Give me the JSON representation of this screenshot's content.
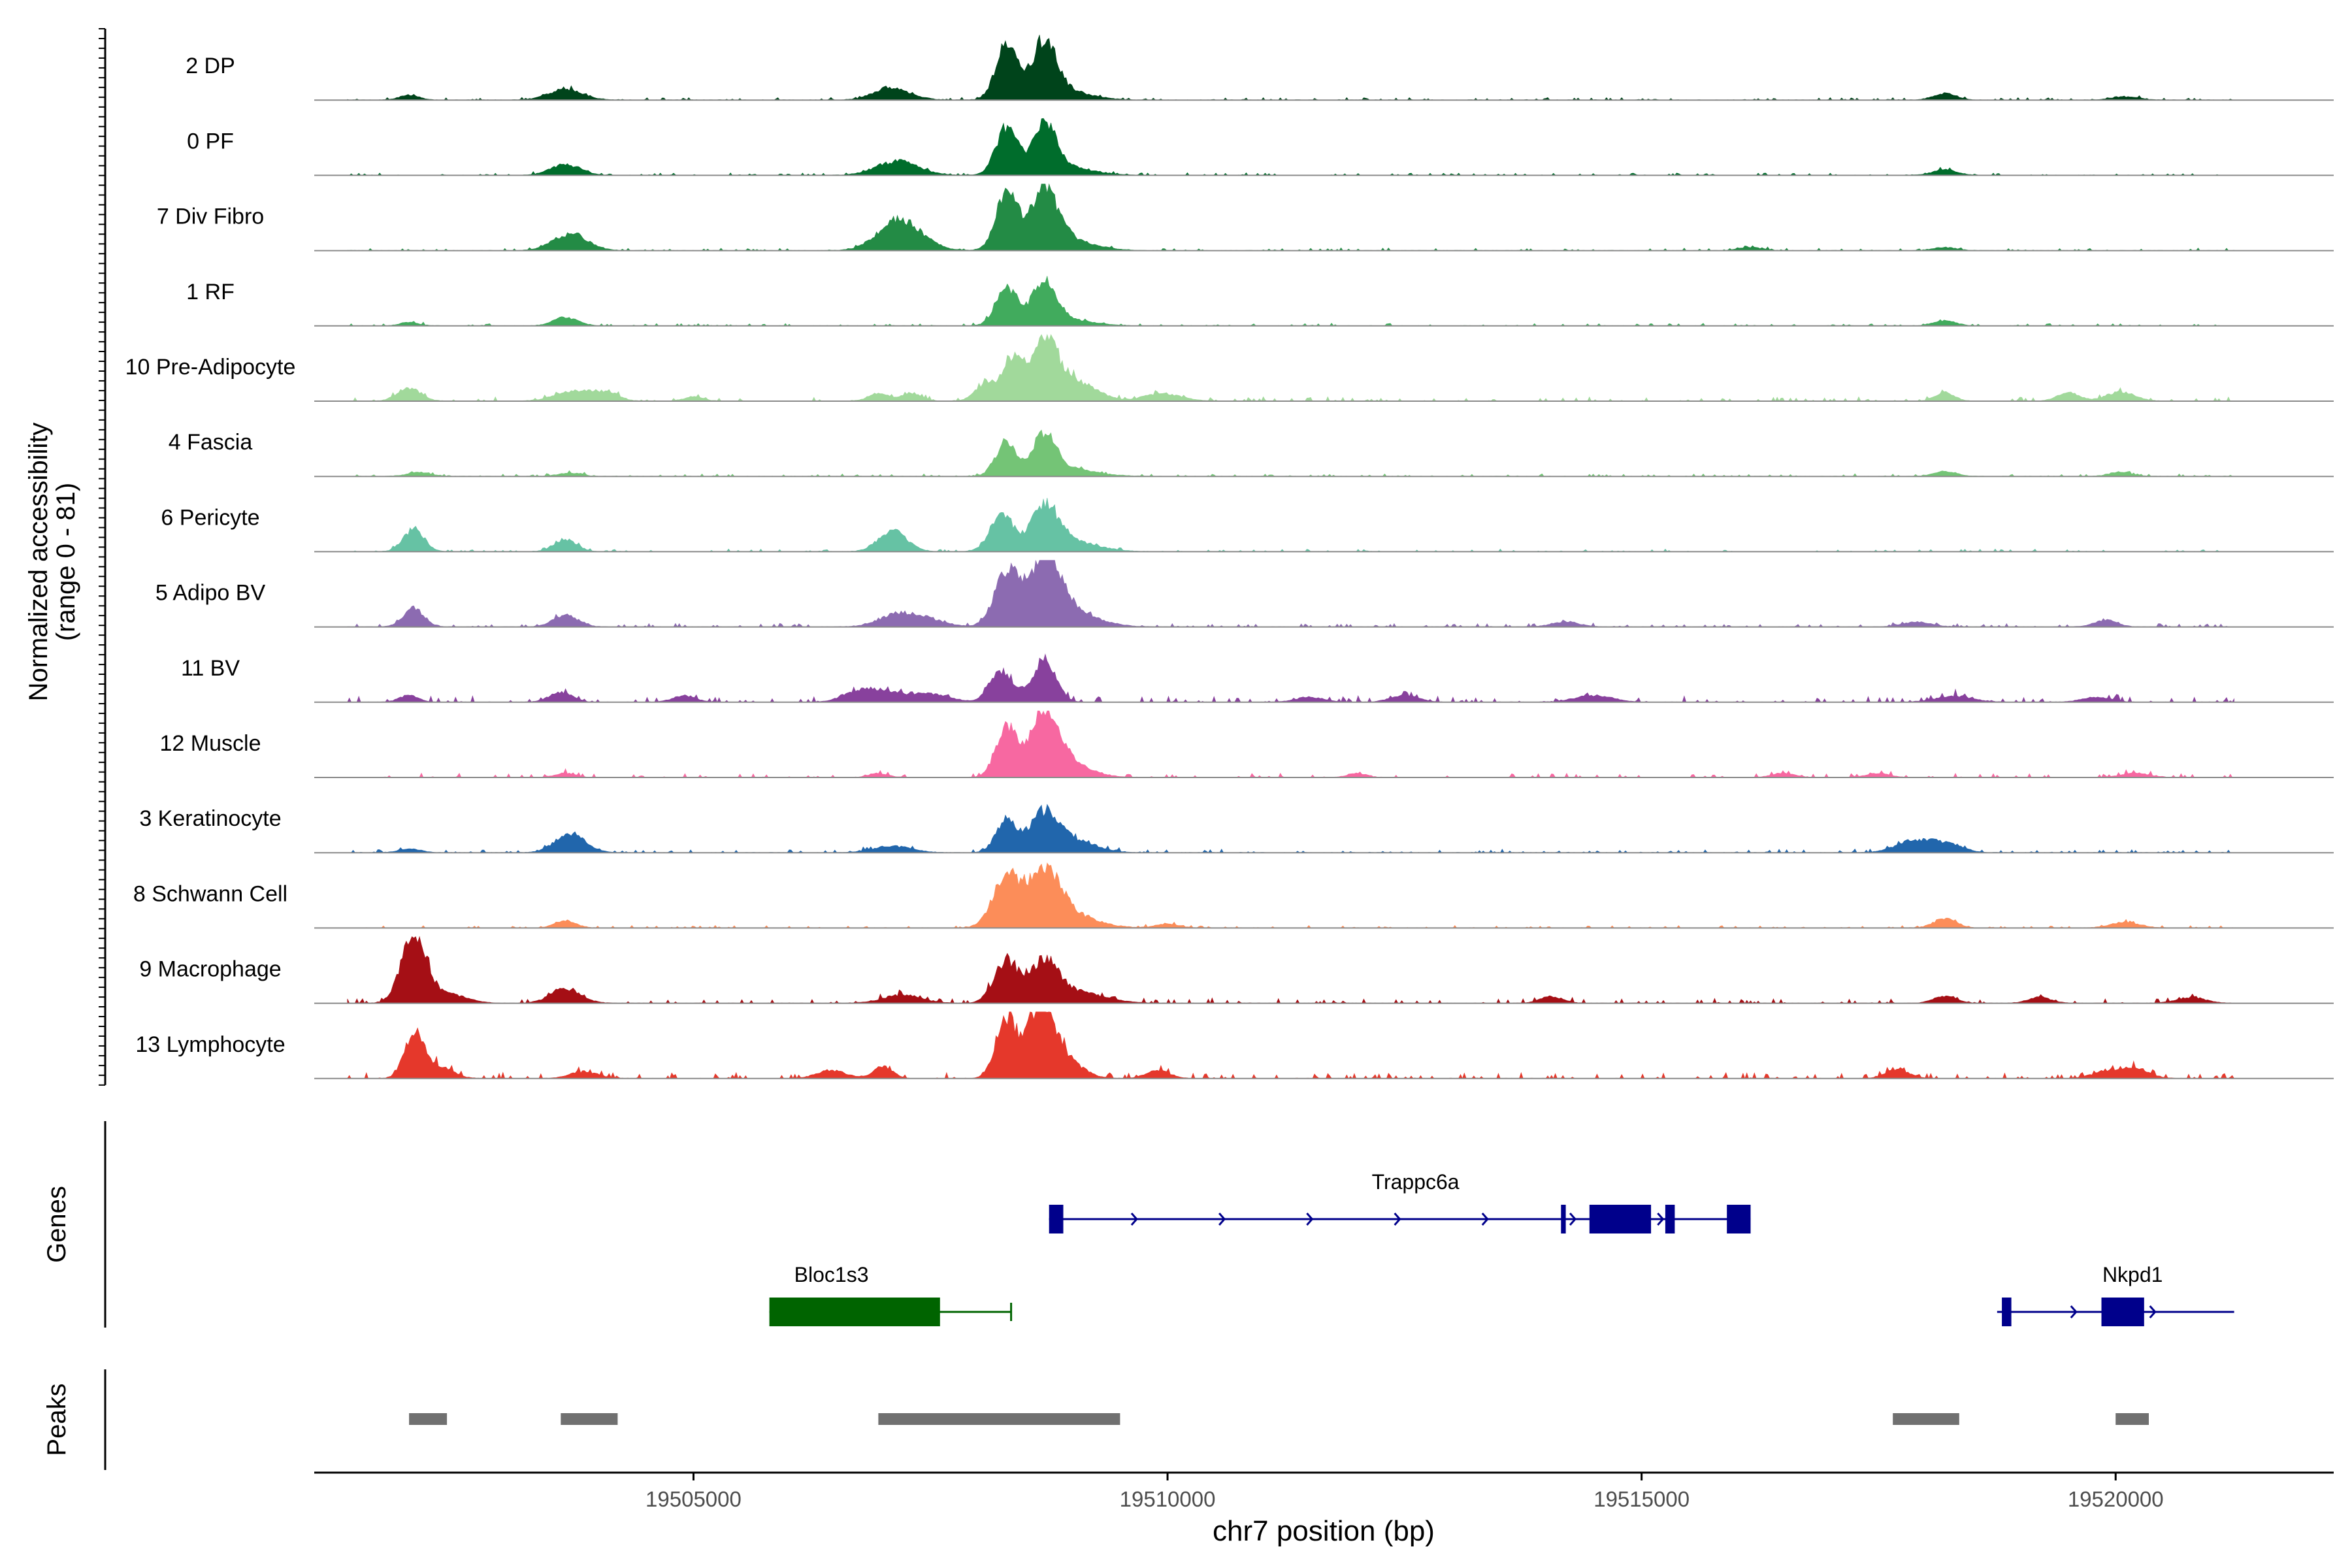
{
  "chart_data": {
    "type": "area",
    "chromosome": "chr7",
    "xlabel": "chr7 position (bp)",
    "ylabel": "Normalized accessibility",
    "ylabel_range": "(range 0 - 81)",
    "ylim": [
      0,
      81
    ],
    "xlim": [
      19501000,
      19522300
    ],
    "x_ticks": [
      {
        "value": 19505000,
        "label": "19505000"
      },
      {
        "value": 19510000,
        "label": "19510000"
      },
      {
        "value": 19515000,
        "label": "19515000"
      },
      {
        "value": 19520000,
        "label": "19520000"
      }
    ],
    "tracks": [
      {
        "name": "2 DP",
        "color": "#00441b",
        "peaks": [
          [
            19502000,
            6,
            100
          ],
          [
            19503650,
            13,
            180
          ],
          [
            19507050,
            9,
            160
          ],
          [
            19507150,
            7,
            200
          ],
          [
            19508300,
            63,
            110
          ],
          [
            19508700,
            61,
            120
          ],
          [
            19508800,
            15,
            300
          ],
          [
            19518200,
            8,
            120
          ],
          [
            19520100,
            4,
            140
          ]
        ],
        "noise": 3,
        "seed": 11
      },
      {
        "name": "0 PF",
        "color": "#006d2c",
        "peaks": [
          [
            19503650,
            13,
            160
          ],
          [
            19507150,
            17,
            220
          ],
          [
            19508300,
            56,
            110
          ],
          [
            19508700,
            55,
            120
          ],
          [
            19508850,
            11,
            300
          ],
          [
            19518200,
            7,
            120
          ]
        ],
        "noise": 3,
        "seed": 12
      },
      {
        "name": "7 Div Fibro",
        "color": "#238b45",
        "peaks": [
          [
            19503700,
            20,
            180
          ],
          [
            19507100,
            25,
            200
          ],
          [
            19507300,
            17,
            200
          ],
          [
            19508300,
            68,
            110
          ],
          [
            19508700,
            62,
            140
          ],
          [
            19508850,
            16,
            300
          ],
          [
            19516150,
            4,
            120
          ],
          [
            19518200,
            4,
            120
          ]
        ],
        "noise": 3,
        "seed": 13
      },
      {
        "name": "1 RF",
        "color": "#41ab5d",
        "peaks": [
          [
            19502000,
            4,
            100
          ],
          [
            19503650,
            10,
            130
          ],
          [
            19508300,
            47,
            110
          ],
          [
            19508700,
            49,
            120
          ],
          [
            19508850,
            9,
            300
          ],
          [
            19518200,
            6,
            120
          ]
        ],
        "noise": 3,
        "seed": 14
      },
      {
        "name": "10 Pre-Adipocyte",
        "color": "#a1d99b",
        "peaks": [
          [
            19502000,
            16,
            120
          ],
          [
            19503750,
            13,
            200
          ],
          [
            19504100,
            9,
            120
          ],
          [
            19505000,
            5,
            100
          ],
          [
            19506950,
            10,
            100
          ],
          [
            19507300,
            10,
            100
          ],
          [
            19508100,
            22,
            120
          ],
          [
            19508400,
            57,
            110
          ],
          [
            19508700,
            67,
            110
          ],
          [
            19508900,
            30,
            150
          ],
          [
            19509200,
            13,
            150
          ],
          [
            19509950,
            9,
            200
          ],
          [
            19518200,
            10,
            100
          ],
          [
            19519500,
            10,
            120
          ],
          [
            19520050,
            11,
            150
          ]
        ],
        "noise": 5,
        "seed": 15
      },
      {
        "name": "4 Fascia",
        "color": "#74c476",
        "peaks": [
          [
            19502100,
            5,
            120
          ],
          [
            19503700,
            4,
            120
          ],
          [
            19508300,
            40,
            110
          ],
          [
            19508700,
            45,
            120
          ],
          [
            19508900,
            10,
            300
          ],
          [
            19518200,
            6,
            120
          ],
          [
            19520050,
            5,
            120
          ]
        ],
        "noise": 3,
        "seed": 16
      },
      {
        "name": "6 Pericyte",
        "color": "#66c2a4",
        "peaks": [
          [
            19502050,
            27,
            110
          ],
          [
            19503650,
            15,
            120
          ],
          [
            19507100,
            25,
            150
          ],
          [
            19508250,
            45,
            120
          ],
          [
            19508700,
            47,
            130
          ],
          [
            19508900,
            15,
            300
          ]
        ],
        "noise": 3,
        "seed": 17
      },
      {
        "name": "5 Adipo BV",
        "color": "#8c6bb1",
        "peaks": [
          [
            19502050,
            22,
            110
          ],
          [
            19503650,
            14,
            130
          ],
          [
            19507150,
            14,
            200
          ],
          [
            19507450,
            8,
            200
          ],
          [
            19508300,
            62,
            130
          ],
          [
            19508700,
            70,
            160
          ],
          [
            19508900,
            22,
            300
          ],
          [
            19514200,
            6,
            150
          ],
          [
            19517900,
            6,
            150
          ],
          [
            19519900,
            8,
            120
          ]
        ],
        "noise": 4,
        "seed": 18
      },
      {
        "name": "11 BV",
        "color": "#88419d",
        "peaks": [
          [
            19502000,
            8,
            100
          ],
          [
            19503600,
            12,
            120
          ],
          [
            19504900,
            8,
            120
          ],
          [
            19506700,
            10,
            150
          ],
          [
            19507000,
            13,
            200
          ],
          [
            19507500,
            10,
            200
          ],
          [
            19508250,
            38,
            120
          ],
          [
            19508700,
            53,
            120
          ],
          [
            19511500,
            6,
            150
          ],
          [
            19512500,
            8,
            150
          ],
          [
            19514500,
            8,
            200
          ],
          [
            19518300,
            7,
            200
          ],
          [
            19519800,
            6,
            150
          ]
        ],
        "noise": 7,
        "seed": 19
      },
      {
        "name": "12 Muscle",
        "color": "#f768a1",
        "peaks": [
          [
            19503650,
            5,
            100
          ],
          [
            19506950,
            5,
            100
          ],
          [
            19508300,
            60,
            110
          ],
          [
            19508700,
            72,
            140
          ],
          [
            19508900,
            20,
            250
          ],
          [
            19512000,
            5,
            100
          ],
          [
            19516500,
            5,
            120
          ],
          [
            19517500,
            5,
            120
          ],
          [
            19520200,
            5,
            150
          ]
        ],
        "noise": 5,
        "seed": 20
      },
      {
        "name": "3 Keratinocyte",
        "color": "#2166ac",
        "peaks": [
          [
            19502000,
            5,
            110
          ],
          [
            19503700,
            22,
            160
          ],
          [
            19507100,
            8,
            200
          ],
          [
            19508300,
            39,
            110
          ],
          [
            19508700,
            42,
            150
          ],
          [
            19508950,
            16,
            250
          ],
          [
            19517900,
            15,
            200
          ],
          [
            19518250,
            9,
            150
          ]
        ],
        "noise": 4,
        "seed": 21
      },
      {
        "name": "8 Schwann Cell",
        "color": "#fc8d59",
        "peaks": [
          [
            19503650,
            9,
            110
          ],
          [
            19508300,
            62,
            140
          ],
          [
            19508700,
            60,
            160
          ],
          [
            19508900,
            18,
            300
          ],
          [
            19510000,
            5,
            120
          ],
          [
            19518200,
            11,
            120
          ],
          [
            19520100,
            7,
            150
          ]
        ],
        "noise": 3,
        "seed": 22
      },
      {
        "name": "9 Macrophage",
        "color": "#a50f15",
        "peaks": [
          [
            19502050,
            81,
            130
          ],
          [
            19502400,
            11,
            200
          ],
          [
            19503650,
            17,
            160
          ],
          [
            19507200,
            10,
            200
          ],
          [
            19508300,
            49,
            130
          ],
          [
            19508700,
            44,
            150
          ],
          [
            19509000,
            14,
            300
          ],
          [
            19514050,
            8,
            120
          ],
          [
            19518200,
            8,
            120
          ],
          [
            19519200,
            7,
            120
          ],
          [
            19520800,
            7,
            150
          ]
        ],
        "noise": 6,
        "seed": 23
      },
      {
        "name": "13 Lymphocyte",
        "color": "#e5382b",
        "peaks": [
          [
            19502050,
            53,
            100
          ],
          [
            19502300,
            15,
            150
          ],
          [
            19503850,
            8,
            150
          ],
          [
            19506450,
            10,
            150
          ],
          [
            19507000,
            14,
            100
          ],
          [
            19508300,
            70,
            110
          ],
          [
            19508650,
            76,
            130
          ],
          [
            19508850,
            30,
            200
          ],
          [
            19509900,
            10,
            120
          ],
          [
            19517700,
            11,
            120
          ],
          [
            19519900,
            8,
            150
          ],
          [
            19520200,
            12,
            150
          ]
        ],
        "noise": 7,
        "seed": 24
      }
    ],
    "genes_panel": {
      "label": "Genes",
      "genes": [
        {
          "name": "Trappc6a",
          "strand": "+",
          "row": 0,
          "color": "#00008b",
          "start": 19508750,
          "end": 19516150,
          "exons": [
            [
              19508750,
              19508900
            ],
            [
              19514150,
              19514200
            ],
            [
              19514450,
              19515100
            ],
            [
              19515250,
              19515350
            ],
            [
              19515900,
              19516150
            ]
          ]
        },
        {
          "name": "Bloc1s3",
          "strand": "-",
          "row": 1,
          "color": "#006400",
          "start": 19505800,
          "end": 19508350,
          "exons": [
            [
              19505800,
              19507600
            ]
          ]
        },
        {
          "name": "Nkpd1",
          "strand": "+",
          "row": 1,
          "color": "#00008b",
          "start": 19518750,
          "end": 19521250,
          "exons": [
            [
              19518800,
              19518900
            ],
            [
              19519850,
              19520300
            ]
          ]
        }
      ]
    },
    "peaks_panel": {
      "label": "Peaks",
      "color": "#707070",
      "regions": [
        [
          19502000,
          19502400
        ],
        [
          19503600,
          19504200
        ],
        [
          19506950,
          19509500
        ],
        [
          19517650,
          19518350
        ],
        [
          19520000,
          19520350
        ]
      ]
    }
  }
}
